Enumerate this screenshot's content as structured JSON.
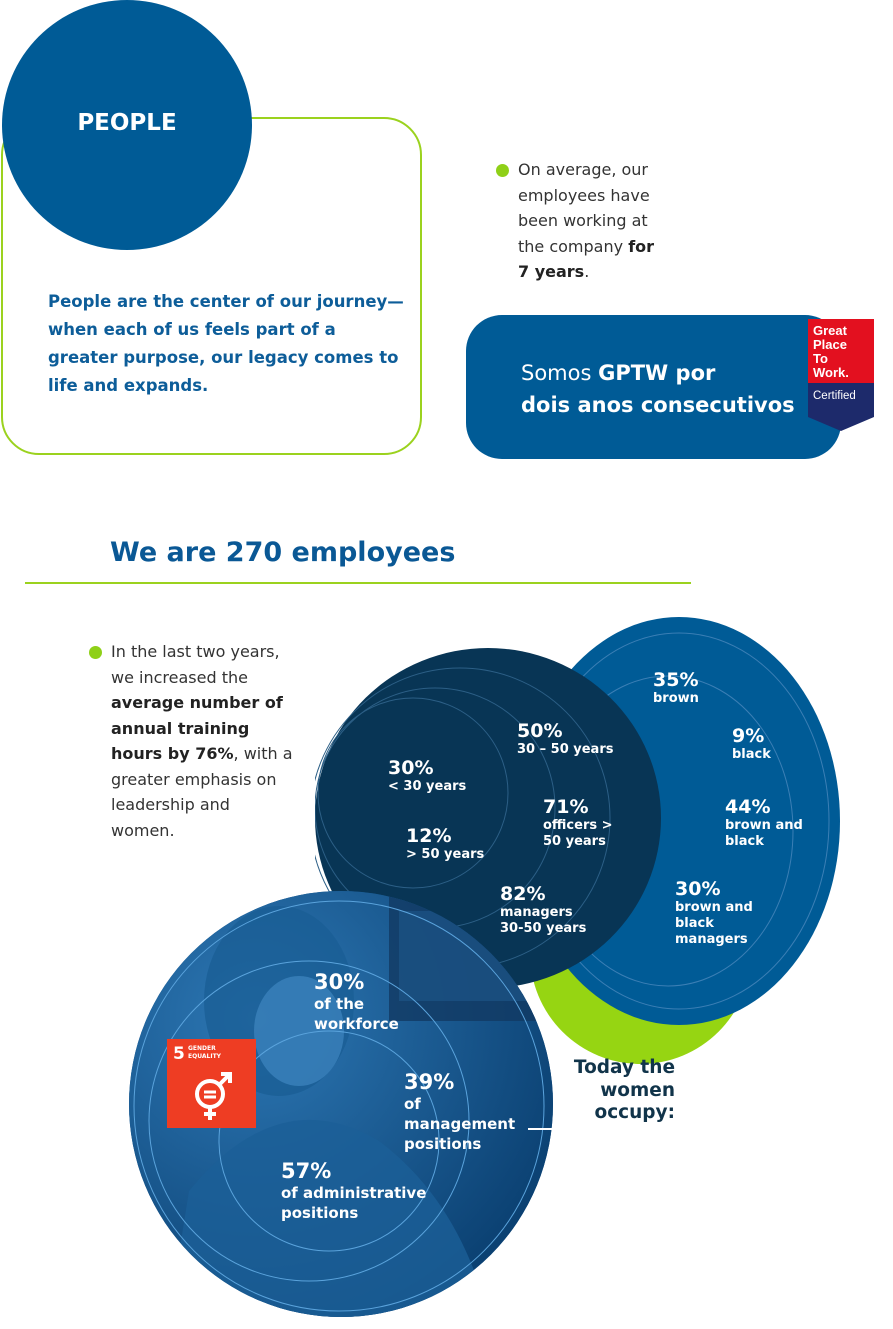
{
  "people": {
    "title": "PEOPLE",
    "description": "People are the center of our journey—when  each of us feels part of a greater purpose, our legacy comes to life and expands."
  },
  "tenure": {
    "text": "On average, our employees have been working at the company",
    "bold": "for 7 years",
    "end": "."
  },
  "gptw": {
    "prefix": "Somos ",
    "bold_word": "GPTW por",
    "line2": "dois anos consecutivos",
    "badge_lines": [
      "Great",
      "Place",
      "To",
      "Work."
    ],
    "badge_certified": "Certified"
  },
  "employees": {
    "title": "We are 270 employees"
  },
  "training": {
    "text_before": "In the last two years, we increased the",
    "bold": "average number of annual training hours by 76%",
    "text_after": ", with a greater emphasis on leadership and women."
  },
  "age_stats": [
    {
      "pct": "50%",
      "label": "30 – 50 years"
    },
    {
      "pct": "30%",
      "label": "< 30 years"
    },
    {
      "pct": "71%",
      "label": "officers > 50 years"
    },
    {
      "pct": "12%",
      "label": "> 50 years"
    },
    {
      "pct": "82%",
      "label": "managers 30-50 years"
    }
  ],
  "race_stats": [
    {
      "pct": "35%",
      "label": "brown"
    },
    {
      "pct": "9%",
      "label": "black"
    },
    {
      "pct": "44%",
      "label": "brown and black"
    },
    {
      "pct": "30%",
      "label": "brown and black managers"
    }
  ],
  "women": {
    "heading": "Today the women occupy:",
    "stats": [
      {
        "pct": "30%",
        "label": "of the workforce"
      },
      {
        "pct": "39%",
        "label": "of management positions"
      },
      {
        "pct": "57%",
        "label": "of administrative positions"
      }
    ]
  },
  "sdg": {
    "number": "5",
    "label": "GENDER EQUALITY",
    "icon": "gender-equality-icon"
  },
  "colors": {
    "brand_blue": "#005b96",
    "dark_navy": "#083555",
    "lime": "#96d512",
    "sdg_red": "#ee3d23"
  }
}
